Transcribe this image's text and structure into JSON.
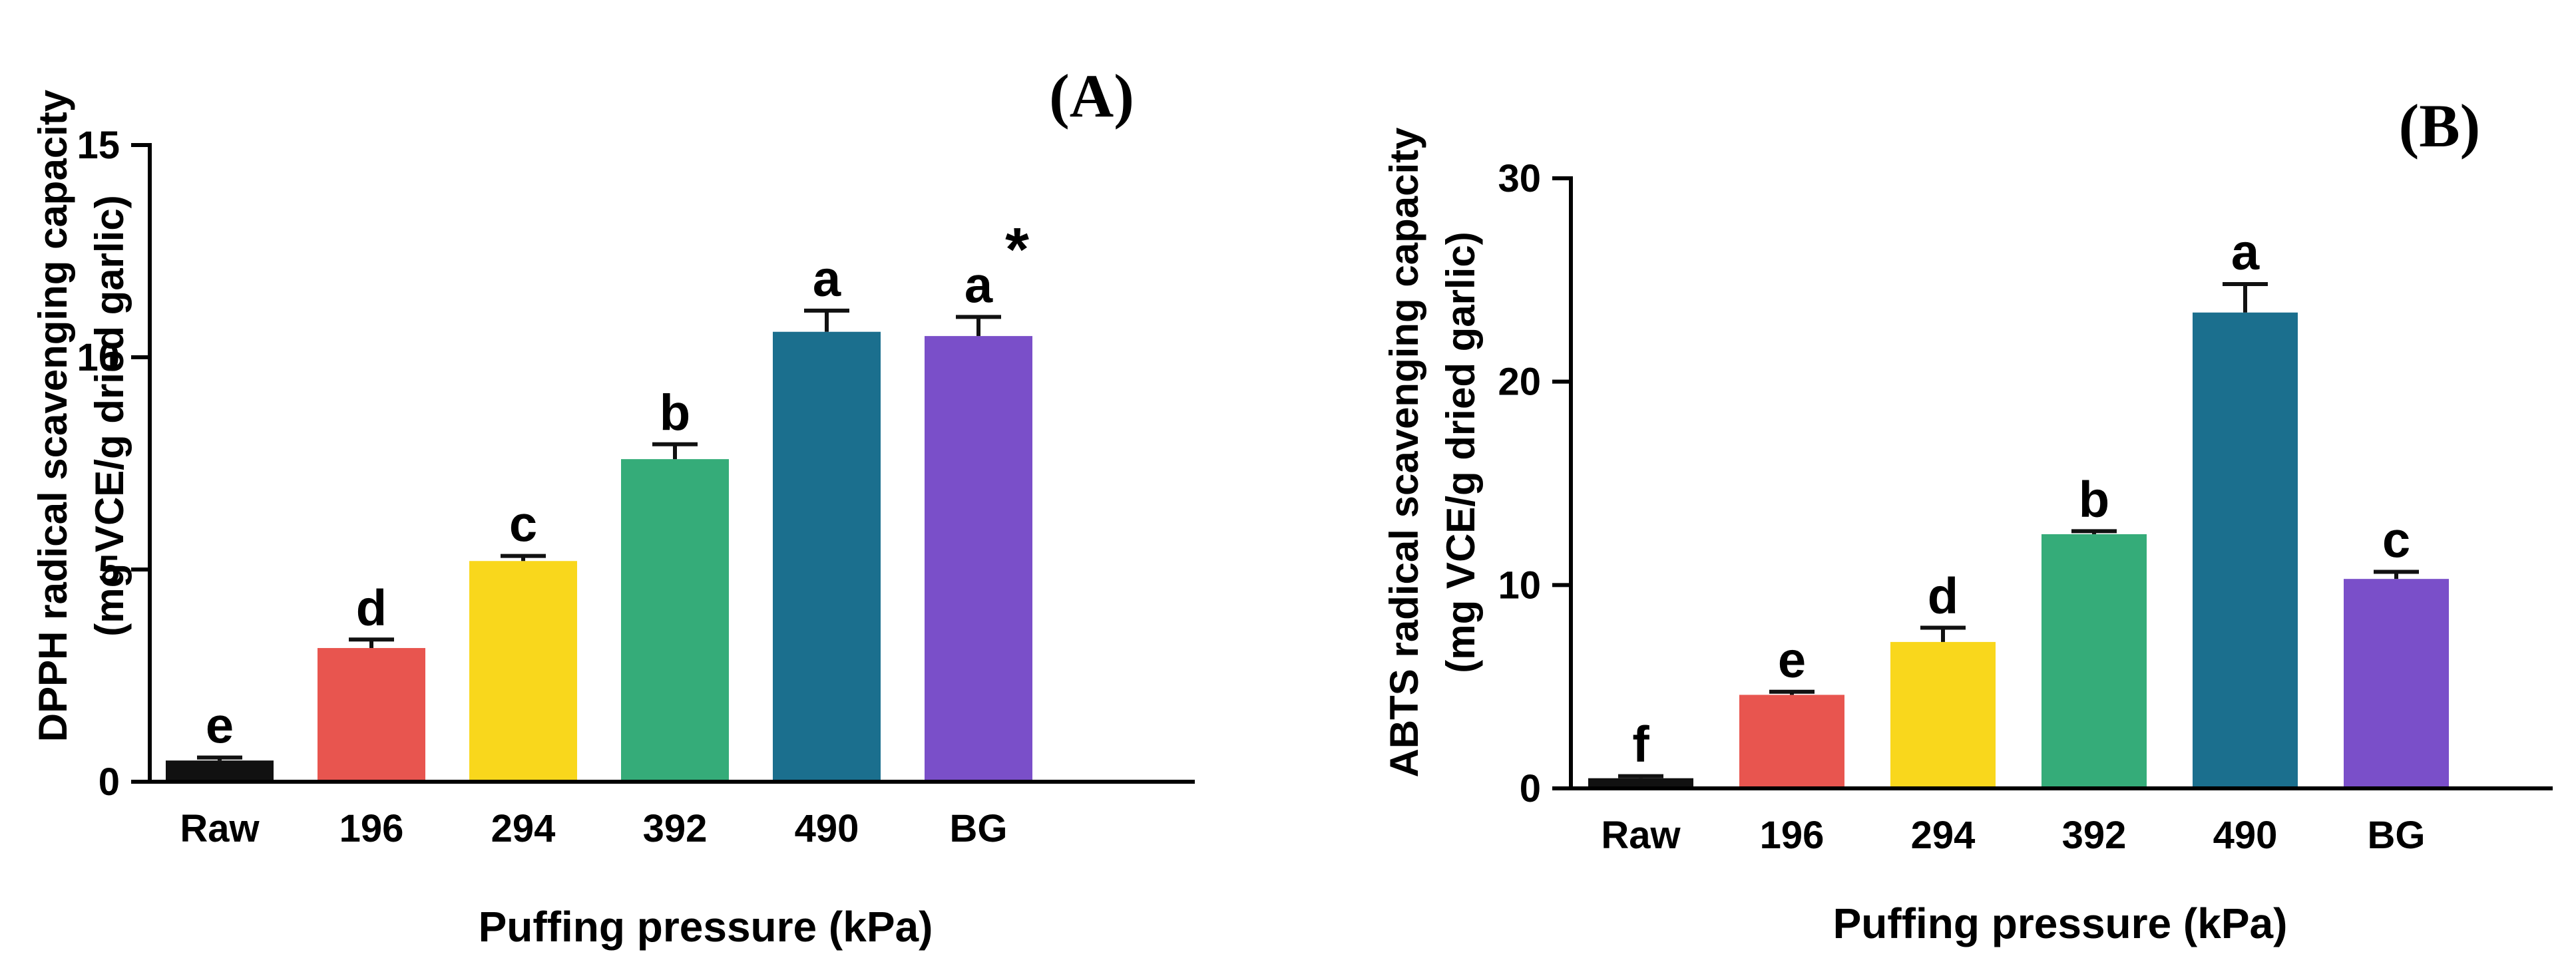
{
  "chart_data": [
    {
      "type": "bar",
      "panel_label": "(A)",
      "title": "",
      "xlabel": "Puffing pressure (kPa)",
      "ylabel_line1": "DPPH radical scavenging capacity",
      "ylabel_line2": "(mg VCE/g dried garlic)",
      "categories": [
        "Raw",
        "196",
        "294",
        "392",
        "490",
        "BG"
      ],
      "values": [
        0.5,
        3.15,
        5.2,
        7.6,
        10.6,
        10.5
      ],
      "errors": [
        0.07,
        0.2,
        0.12,
        0.35,
        0.5,
        0.45
      ],
      "letters": [
        "e",
        "d",
        "c",
        "b",
        "a",
        "a"
      ],
      "asterisk": "*",
      "asterisk_index": 5,
      "ylim": [
        0,
        15
      ],
      "yticks": [
        0,
        5,
        10,
        15
      ],
      "ytick_labels": [
        "0",
        "5",
        "10",
        "15"
      ],
      "colors": [
        "#111111",
        "#e8554f",
        "#f9d71c",
        "#35ac79",
        "#1b6f8e",
        "#7a4fc9"
      ]
    },
    {
      "type": "bar",
      "panel_label": "(B)",
      "title": "",
      "xlabel": "Puffing pressure (kPa)",
      "ylabel_line1": "ABTS radical scavenging capacity",
      "ylabel_line2": "(mg VCE/g dried garlic)",
      "categories": [
        "Raw",
        "196",
        "294",
        "392",
        "490",
        "BG"
      ],
      "values": [
        0.5,
        4.6,
        7.2,
        12.5,
        23.4,
        10.3
      ],
      "errors": [
        0.1,
        0.15,
        0.7,
        0.15,
        1.4,
        0.35
      ],
      "letters": [
        "f",
        "e",
        "d",
        "b",
        "a",
        "c"
      ],
      "ylim": [
        0,
        30
      ],
      "yticks": [
        0,
        10,
        20,
        30
      ],
      "ytick_labels": [
        "0",
        "10",
        "20",
        "30"
      ],
      "colors": [
        "#111111",
        "#e8554f",
        "#f9d71c",
        "#35ac79",
        "#1b6f8e",
        "#7a4fc9"
      ]
    }
  ]
}
